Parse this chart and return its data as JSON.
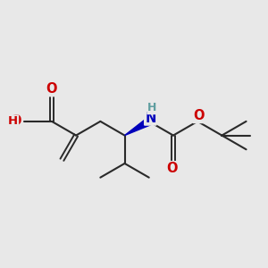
{
  "background_color": "#e8e8e8",
  "bond_color": "#2a2a2a",
  "atom_colors": {
    "O": "#cc0000",
    "N": "#0000bb",
    "H_on_O": "#cc0000",
    "H_on_N": "#5f9ea0",
    "C_label": "#2a2a2a"
  },
  "figsize": [
    3.0,
    3.0
  ],
  "dpi": 100
}
